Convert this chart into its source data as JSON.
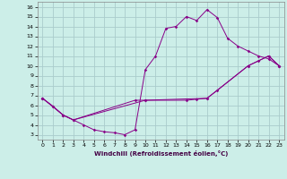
{
  "xlabel": "Windchill (Refroidissement éolien,°C)",
  "bg_color": "#cceee8",
  "grid_color": "#aacccc",
  "line_color": "#880088",
  "xlim": [
    -0.5,
    23.5
  ],
  "ylim": [
    2.5,
    16.5
  ],
  "xticks": [
    0,
    1,
    2,
    3,
    4,
    5,
    6,
    7,
    8,
    9,
    10,
    11,
    12,
    13,
    14,
    15,
    16,
    17,
    18,
    19,
    20,
    21,
    22,
    23
  ],
  "yticks": [
    3,
    4,
    5,
    6,
    7,
    8,
    9,
    10,
    11,
    12,
    13,
    14,
    15,
    16
  ],
  "curve1_x": [
    0,
    1,
    2,
    3,
    4,
    5,
    6,
    7,
    8,
    9,
    10,
    11,
    12,
    13,
    14,
    15,
    16,
    17,
    18,
    19,
    20,
    21,
    22,
    23
  ],
  "curve1_y": [
    6.7,
    5.9,
    5.0,
    4.5,
    4.0,
    3.5,
    3.3,
    3.2,
    3.0,
    3.5,
    9.6,
    11.0,
    13.8,
    14.0,
    15.0,
    14.6,
    15.7,
    14.9,
    12.8,
    12.0,
    11.5,
    11.0,
    10.7,
    10.0
  ],
  "curve2_x": [
    0,
    1,
    2,
    3,
    9,
    10,
    14,
    15,
    16,
    17,
    20,
    21,
    22,
    23
  ],
  "curve2_y": [
    6.7,
    5.9,
    5.0,
    4.5,
    6.5,
    6.5,
    6.5,
    6.6,
    6.7,
    7.5,
    10.0,
    10.5,
    11.0,
    10.0
  ],
  "curve3_x": [
    0,
    2,
    3,
    10,
    16,
    20,
    22,
    23
  ],
  "curve3_y": [
    6.7,
    5.0,
    4.5,
    6.5,
    6.7,
    10.0,
    11.0,
    10.0
  ]
}
